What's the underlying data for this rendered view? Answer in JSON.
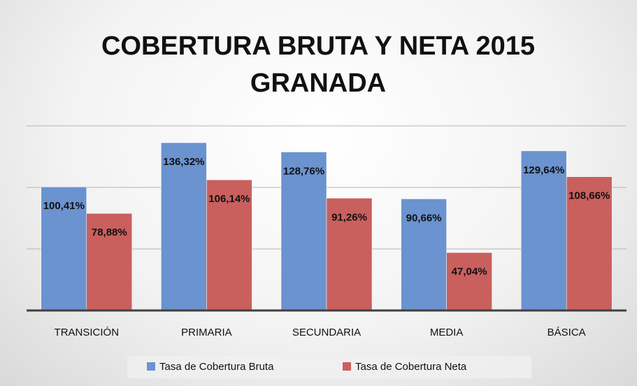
{
  "chart_data": {
    "type": "bar",
    "title": "COBERTURA BRUTA Y NETA 2015 GRANADA",
    "categories": [
      "TRANSICIÓN",
      "PRIMARIA",
      "SECUNDARIA",
      "MEDIA",
      "BÁSICA"
    ],
    "series": [
      {
        "name": "Tasa de Cobertura Bruta",
        "color": "#6a93cf",
        "values": [
          100.41,
          136.32,
          128.76,
          90.66,
          129.64
        ],
        "value_labels": [
          "100,41%",
          "136,32%",
          "128,76%",
          "90,66%",
          "129,64%"
        ]
      },
      {
        "name": "Tasa de Cobertura Neta",
        "color": "#c9605e",
        "values": [
          78.88,
          106.14,
          91.26,
          47.04,
          108.66
        ],
        "value_labels": [
          "78,88%",
          "106,14%",
          "91,26%",
          "47,04%",
          "108,66%"
        ]
      }
    ],
    "ylim": [
      0,
      150
    ],
    "yticks": [
      0,
      50,
      100,
      150
    ],
    "grid": true,
    "legend": "bottom"
  }
}
